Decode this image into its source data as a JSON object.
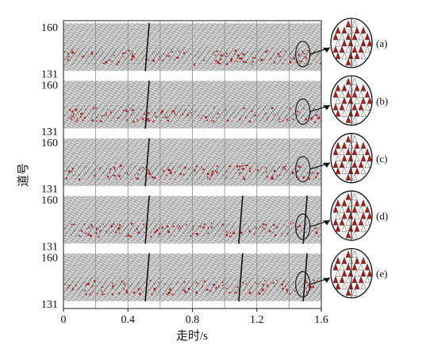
{
  "chart_data": {
    "type": "heatmap",
    "title": "",
    "xlabel": "走时/s",
    "ylabel": "道号",
    "xlim": [
      0,
      1.6
    ],
    "x_ticks": [
      "0",
      "0.4",
      "0.8",
      "1.2",
      "1.6"
    ],
    "x_tick_values": [
      0,
      0.4,
      0.8,
      1.2,
      1.6
    ],
    "x_gridlines": [
      0.2,
      0.4,
      0.6,
      0.8,
      1.0,
      1.2,
      1.4
    ],
    "grid": true,
    "panels": [
      {
        "label": "(a)",
        "y_top": "160",
        "y_bottom": "131",
        "events": [
          0.52
        ]
      },
      {
        "label": "(b)",
        "y_top": "160",
        "y_bottom": "131",
        "events": [
          0.52
        ]
      },
      {
        "label": "(c)",
        "y_top": "160",
        "y_bottom": "131",
        "events": [
          0.52
        ]
      },
      {
        "label": "(d)",
        "y_top": "160",
        "y_bottom": "131",
        "events": [
          0.52,
          1.1,
          1.5
        ]
      },
      {
        "label": "(e)",
        "y_top": "160",
        "y_bottom": "131",
        "events": [
          0.52,
          1.1,
          1.5
        ]
      }
    ],
    "zoom_marker_x": 1.5
  },
  "colors": {
    "trace": "#333333",
    "fill_red": "#b01818",
    "panel_bg": "#d8d8d8",
    "gridline": "#888888"
  }
}
